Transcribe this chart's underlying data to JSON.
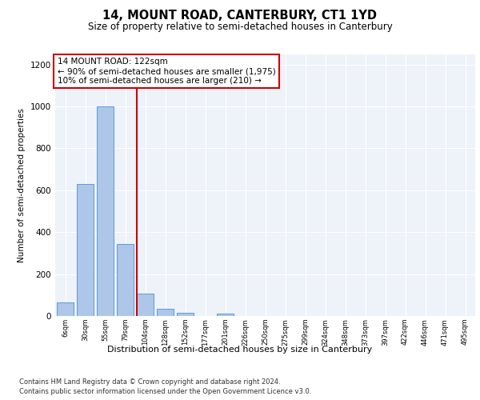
{
  "title": "14, MOUNT ROAD, CANTERBURY, CT1 1YD",
  "subtitle": "Size of property relative to semi-detached houses in Canterbury",
  "xlabel": "Distribution of semi-detached houses by size in Canterbury",
  "ylabel": "Number of semi-detached properties",
  "categories": [
    "6sqm",
    "30sqm",
    "55sqm",
    "79sqm",
    "104sqm",
    "128sqm",
    "152sqm",
    "177sqm",
    "201sqm",
    "226sqm",
    "250sqm",
    "275sqm",
    "299sqm",
    "324sqm",
    "348sqm",
    "373sqm",
    "397sqm",
    "422sqm",
    "446sqm",
    "471sqm",
    "495sqm"
  ],
  "values": [
    65,
    630,
    1000,
    345,
    105,
    35,
    15,
    0,
    10,
    0,
    0,
    0,
    0,
    0,
    0,
    0,
    0,
    0,
    0,
    0,
    0
  ],
  "bar_color": "#aec6e8",
  "bar_edgecolor": "#5b9bd5",
  "annotation_text": "14 MOUNT ROAD: 122sqm\n← 90% of semi-detached houses are smaller (1,975)\n10% of semi-detached houses are larger (210) →",
  "annotation_box_color": "#ffffff",
  "annotation_box_edgecolor": "#cc0000",
  "vline_color": "#cc0000",
  "vline_x": 3.57,
  "ylim": [
    0,
    1250
  ],
  "yticks": [
    0,
    200,
    400,
    600,
    800,
    1000,
    1200
  ],
  "background_color": "#eef2f9",
  "grid_color": "#ffffff",
  "footer_line1": "Contains HM Land Registry data © Crown copyright and database right 2024.",
  "footer_line2": "Contains public sector information licensed under the Open Government Licence v3.0."
}
